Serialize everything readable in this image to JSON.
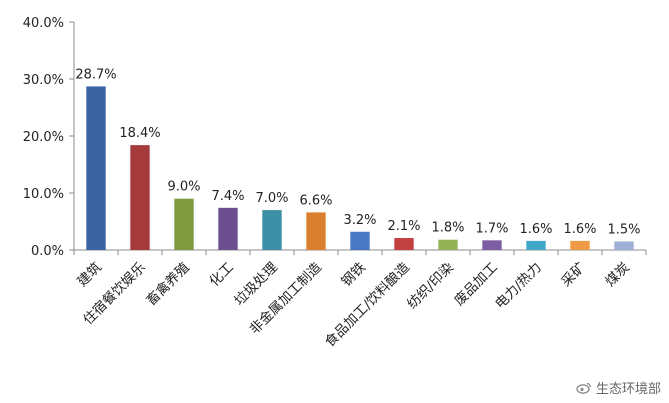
{
  "chart_data": {
    "type": "bar",
    "title": "",
    "xlabel": "",
    "ylabel": "",
    "ylim": [
      0,
      40
    ],
    "yticks": [
      "0.0%",
      "10.0%",
      "20.0%",
      "30.0%",
      "40.0%"
    ],
    "grid": false,
    "legend": "none",
    "categories": [
      "建筑",
      "住宿餐饮娱乐",
      "畜禽养殖",
      "化工",
      "垃圾处理",
      "非金属加工制造",
      "钢铁",
      "食品加工/饮料酿造",
      "纺织/印染",
      "废品加工",
      "电力/热力",
      "采矿",
      "煤炭"
    ],
    "values": [
      28.7,
      18.4,
      9.0,
      7.4,
      7.0,
      6.6,
      3.2,
      2.1,
      1.8,
      1.7,
      1.6,
      1.6,
      1.5
    ],
    "labels": [
      "28.7%",
      "18.4%",
      "9.0%",
      "7.4%",
      "7.0%",
      "6.6%",
      "3.2%",
      "2.1%",
      "1.8%",
      "1.7%",
      "1.6%",
      "1.6%",
      "1.5%"
    ],
    "colors": [
      "#3b64a0",
      "#a63a3a",
      "#7f9a3e",
      "#6b4f8e",
      "#3d8fa6",
      "#d97f2e",
      "#4a78c2",
      "#c0413f",
      "#93b254",
      "#7d5ea3",
      "#40a8c7",
      "#ef9a44",
      "#9fb0d8"
    ]
  },
  "watermark": {
    "text": "生态环境部",
    "icon": "weibo-icon"
  }
}
